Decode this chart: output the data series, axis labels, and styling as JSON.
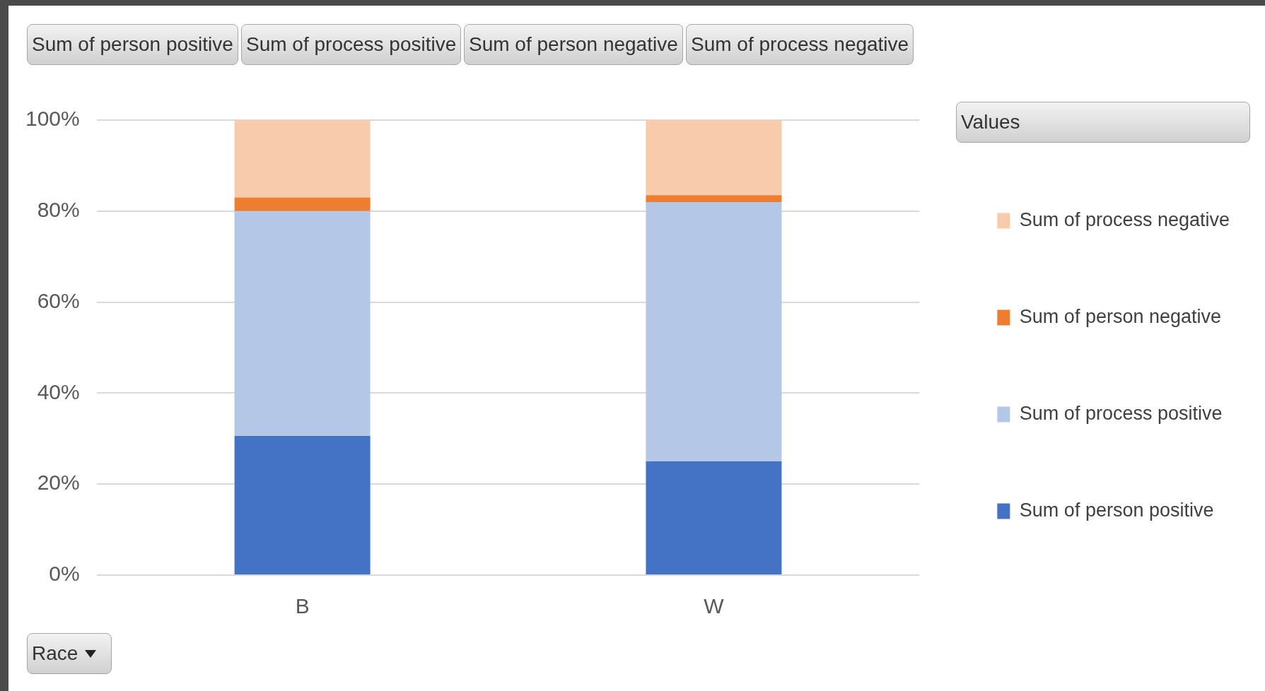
{
  "chart_data": {
    "type": "bar",
    "stacked": true,
    "categories": [
      "B",
      "W"
    ],
    "series": [
      {
        "name": "Sum of person positive",
        "color": "#4472c4",
        "values": [
          30.6,
          25
        ]
      },
      {
        "name": "Sum of process positive",
        "color": "#b4c7e7",
        "values": [
          49.4,
          57
        ]
      },
      {
        "name": "Sum of person negative",
        "color": "#ed7d31",
        "values": [
          3,
          1.5
        ]
      },
      {
        "name": "Sum of process negative",
        "color": "#f8cbad",
        "values": [
          17,
          16.5
        ]
      }
    ],
    "ylim": [
      0,
      100
    ],
    "yticks": [
      {
        "value": 0,
        "label": "0%"
      },
      {
        "value": 20,
        "label": "20%"
      },
      {
        "value": 40,
        "label": "40%"
      },
      {
        "value": 60,
        "label": "60%"
      },
      {
        "value": 80,
        "label": "80%"
      },
      {
        "value": 100,
        "label": "100%"
      }
    ],
    "grid": "y",
    "legend": "right",
    "legend_title": "Values",
    "xlabel": "Race",
    "annotations": [
      "Sum of person positive",
      "Sum of process positive",
      "Sum of person negative",
      "Sum of process negative"
    ]
  }
}
